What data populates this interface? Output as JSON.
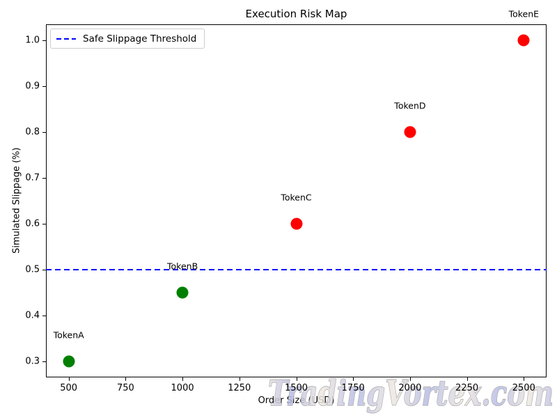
{
  "figure": {
    "title": "Execution Risk Map",
    "watermark": "TradingVortex.com"
  },
  "chart_data": {
    "type": "scatter",
    "title": "Execution Risk Map",
    "xlabel": "Order Size (USD)",
    "ylabel": "Simulated Slippage (%)",
    "xlim": [
      400,
      2600
    ],
    "ylim": [
      0.265,
      1.035
    ],
    "x_ticks": [
      500,
      750,
      1000,
      1250,
      1500,
      1750,
      2000,
      2250,
      2500
    ],
    "y_ticks": [
      0.3,
      0.4,
      0.5,
      0.6,
      0.7,
      0.8,
      0.9,
      1.0
    ],
    "grid": false,
    "points": [
      {
        "label": "TokenA",
        "x": 500,
        "y": 0.3,
        "color": "#008000"
      },
      {
        "label": "TokenB",
        "x": 1000,
        "y": 0.45,
        "color": "#008000"
      },
      {
        "label": "TokenC",
        "x": 1500,
        "y": 0.6,
        "color": "#ff0000"
      },
      {
        "label": "TokenD",
        "x": 2000,
        "y": 0.8,
        "color": "#ff0000"
      },
      {
        "label": "TokenE",
        "x": 2500,
        "y": 1.0,
        "color": "#ff0000"
      }
    ],
    "threshold_line": {
      "value": 0.5,
      "color": "#0000ff",
      "style": "dashed",
      "label": "Safe Slippage Threshold"
    },
    "legend": {
      "position": "upper left",
      "entries": [
        {
          "label": "Safe Slippage Threshold",
          "color": "#0000ff",
          "line_style": "dashed"
        }
      ]
    }
  }
}
